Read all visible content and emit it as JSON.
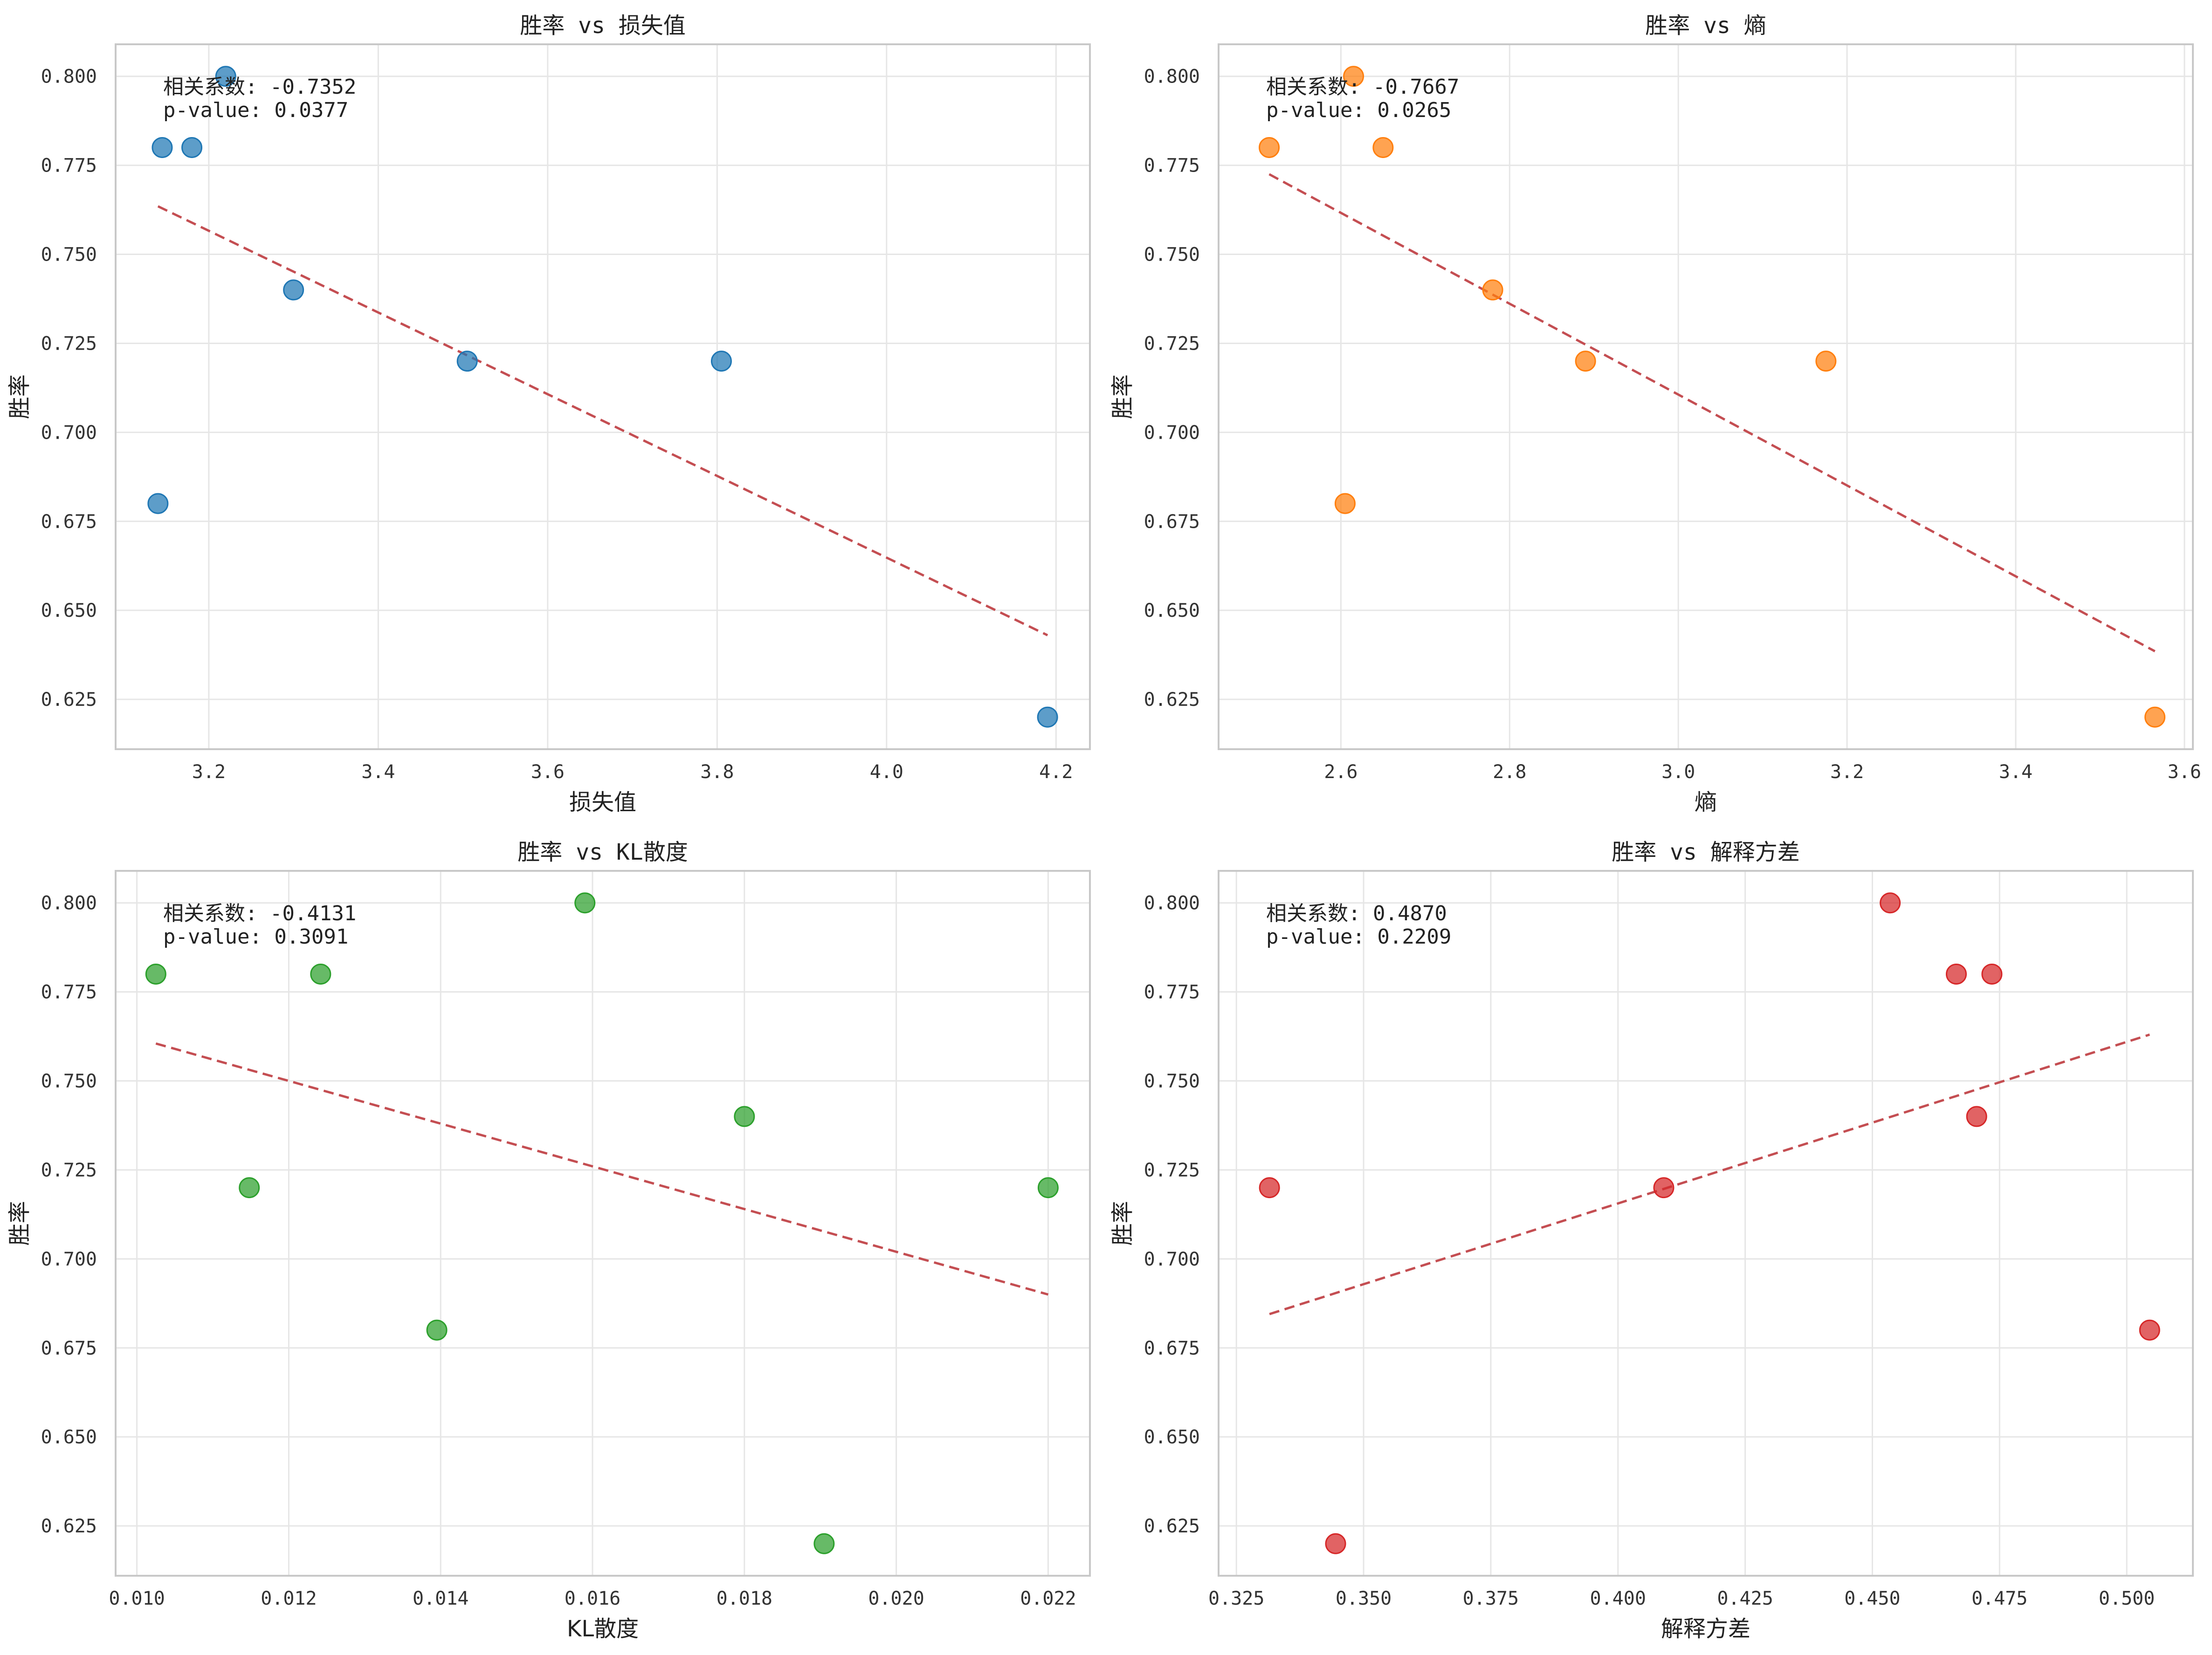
{
  "colors": {
    "trend": "#c44e52"
  },
  "chart_data": [
    {
      "type": "scatter",
      "title": "胜率 vs 损失值",
      "xlabel": "损失值",
      "ylabel": "胜率",
      "xlim": [
        3.09,
        4.24
      ],
      "ylim": [
        0.611,
        0.809
      ],
      "xticks": [
        3.2,
        3.4,
        3.6,
        3.8,
        4.0,
        4.2
      ],
      "xtick_labels": [
        "3.2",
        "3.4",
        "3.6",
        "3.8",
        "4.0",
        "4.2"
      ],
      "yticks": [
        0.625,
        0.65,
        0.675,
        0.7,
        0.725,
        0.75,
        0.775,
        0.8
      ],
      "ytick_labels": [
        "0.625",
        "0.650",
        "0.675",
        "0.700",
        "0.725",
        "0.750",
        "0.775",
        "0.800"
      ],
      "color": "#1f77b4",
      "x": [
        3.14,
        3.145,
        3.18,
        3.22,
        3.3,
        3.505,
        3.805,
        4.19
      ],
      "y": [
        0.68,
        0.78,
        0.78,
        0.8,
        0.74,
        0.72,
        0.72,
        0.62
      ],
      "trendline": {
        "x": [
          3.14,
          4.19
        ],
        "y": [
          0.7635,
          0.643
        ]
      },
      "annotation": [
        "相关系数: -0.7352",
        "p-value: 0.0377"
      ]
    },
    {
      "type": "scatter",
      "title": "胜率 vs 熵",
      "xlabel": "熵",
      "ylabel": "胜率",
      "xlim": [
        2.455,
        3.61
      ],
      "ylim": [
        0.611,
        0.809
      ],
      "xticks": [
        2.6,
        2.8,
        3.0,
        3.2,
        3.4,
        3.6
      ],
      "xtick_labels": [
        "2.6",
        "2.8",
        "3.0",
        "3.2",
        "3.4",
        "3.6"
      ],
      "yticks": [
        0.625,
        0.65,
        0.675,
        0.7,
        0.725,
        0.75,
        0.775,
        0.8
      ],
      "ytick_labels": [
        "0.625",
        "0.650",
        "0.675",
        "0.700",
        "0.725",
        "0.750",
        "0.775",
        "0.800"
      ],
      "color": "#ff7f0e",
      "x": [
        2.515,
        2.605,
        2.615,
        2.65,
        2.78,
        2.89,
        3.175,
        3.565
      ],
      "y": [
        0.78,
        0.68,
        0.8,
        0.78,
        0.74,
        0.72,
        0.72,
        0.62
      ],
      "trendline": {
        "x": [
          2.515,
          3.565
        ],
        "y": [
          0.7725,
          0.6385
        ]
      },
      "annotation": [
        "相关系数: -0.7667",
        "p-value: 0.0265"
      ]
    },
    {
      "type": "scatter",
      "title": "胜率 vs KL散度",
      "xlabel": "KL散度",
      "ylabel": "胜率",
      "xlim": [
        0.00972,
        0.02255
      ],
      "ylim": [
        0.611,
        0.809
      ],
      "xticks": [
        0.01,
        0.012,
        0.014,
        0.016,
        0.018,
        0.02,
        0.022
      ],
      "xtick_labels": [
        "0.010",
        "0.012",
        "0.014",
        "0.016",
        "0.018",
        "0.020",
        "0.022"
      ],
      "yticks": [
        0.625,
        0.65,
        0.675,
        0.7,
        0.725,
        0.75,
        0.775,
        0.8
      ],
      "ytick_labels": [
        "0.625",
        "0.650",
        "0.675",
        "0.700",
        "0.725",
        "0.750",
        "0.775",
        "0.800"
      ],
      "color": "#2ca02c",
      "x": [
        0.01025,
        0.01148,
        0.01242,
        0.01395,
        0.0159,
        0.018,
        0.01905,
        0.022
      ],
      "y": [
        0.78,
        0.72,
        0.78,
        0.68,
        0.8,
        0.74,
        0.62,
        0.72
      ],
      "trendline": {
        "x": [
          0.01025,
          0.022
        ],
        "y": [
          0.7605,
          0.69
        ]
      },
      "annotation": [
        "相关系数: -0.4131",
        "p-value: 0.3091"
      ]
    },
    {
      "type": "scatter",
      "title": "胜率 vs 解释方差",
      "xlabel": "解释方差",
      "ylabel": "胜率",
      "xlim": [
        0.3215,
        0.513
      ],
      "ylim": [
        0.611,
        0.809
      ],
      "xticks": [
        0.325,
        0.35,
        0.375,
        0.4,
        0.425,
        0.45,
        0.475,
        0.5
      ],
      "xtick_labels": [
        "0.325",
        "0.350",
        "0.375",
        "0.400",
        "0.425",
        "0.450",
        "0.475",
        "0.500"
      ],
      "yticks": [
        0.625,
        0.65,
        0.675,
        0.7,
        0.725,
        0.75,
        0.775,
        0.8
      ],
      "ytick_labels": [
        "0.625",
        "0.650",
        "0.675",
        "0.700",
        "0.725",
        "0.750",
        "0.775",
        "0.800"
      ],
      "color": "#d62728",
      "x": [
        0.3315,
        0.3445,
        0.409,
        0.4535,
        0.4665,
        0.4705,
        0.4735,
        0.5045
      ],
      "y": [
        0.72,
        0.62,
        0.72,
        0.8,
        0.78,
        0.74,
        0.78,
        0.68
      ],
      "trendline": {
        "x": [
          0.3315,
          0.5045
        ],
        "y": [
          0.6845,
          0.763
        ]
      },
      "annotation": [
        "相关系数: 0.4870",
        "p-value: 0.2209"
      ]
    }
  ]
}
